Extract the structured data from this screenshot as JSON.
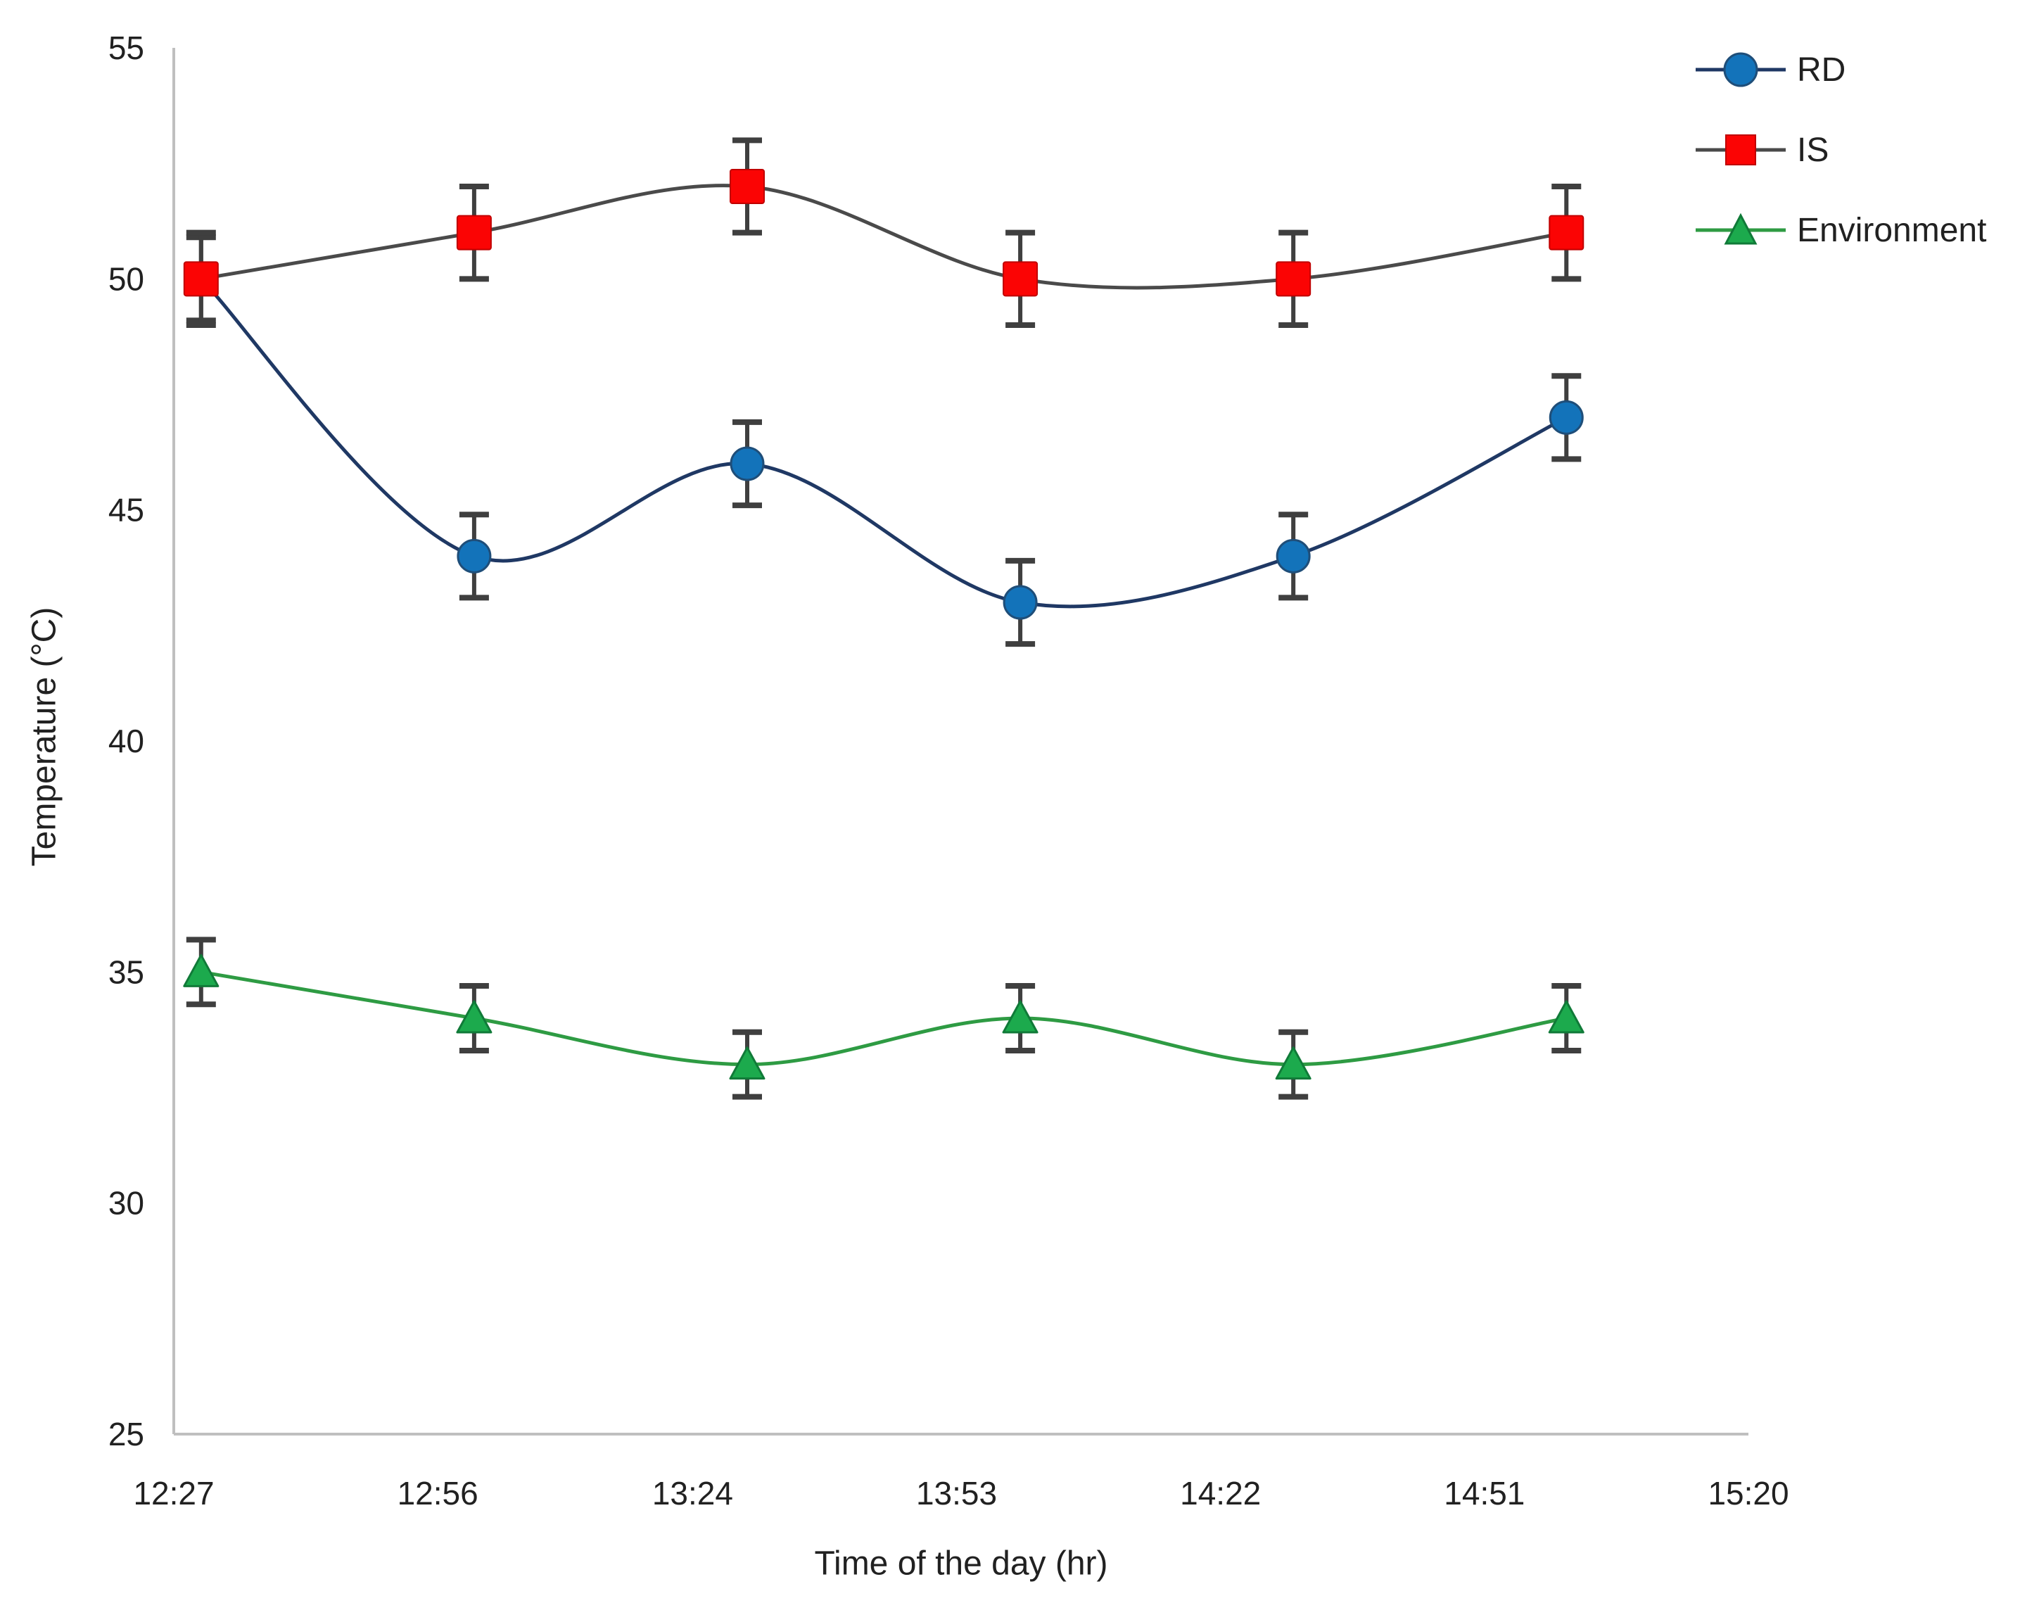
{
  "chart_data": {
    "type": "line",
    "title": "",
    "xlabel": "Time of the day (hr)",
    "ylabel": "Temperature (°C)",
    "x_tick_labels": [
      "12:27",
      "12:56",
      "13:24",
      "13:53",
      "14:22",
      "14:51",
      "15:20"
    ],
    "y_ticks": [
      55,
      50,
      45,
      40,
      35,
      30,
      25
    ],
    "ylim": [
      25,
      55
    ],
    "x_point_times": [
      "12:30",
      "13:00",
      "13:30",
      "14:00",
      "14:30",
      "15:00"
    ],
    "grid": false,
    "legend_position": "top-right",
    "line_smoothing": true,
    "axis_color": "#BFBFBF",
    "error_bar_color": "#3F3F3F",
    "text_color": "#212121",
    "series": [
      {
        "name": "RD",
        "values": [
          50,
          44,
          46,
          43,
          44,
          47
        ],
        "error": 0.9,
        "marker": "circle",
        "marker_color": "#1373BA",
        "marker_edge": "#1F4E79",
        "line_color": "#1F3864"
      },
      {
        "name": "IS",
        "values": [
          50,
          51,
          52,
          50,
          50,
          51
        ],
        "error": 1.0,
        "marker": "square",
        "marker_color": "#FB0404",
        "marker_edge": "#C00000",
        "line_color": "#4A4A4A"
      },
      {
        "name": "Environment",
        "values": [
          35,
          34,
          33,
          34,
          33,
          34
        ],
        "error": 0.7,
        "marker": "triangle",
        "marker_color": "#1CAA4D",
        "marker_edge": "#107A38",
        "line_color": "#2E9B43"
      }
    ]
  }
}
